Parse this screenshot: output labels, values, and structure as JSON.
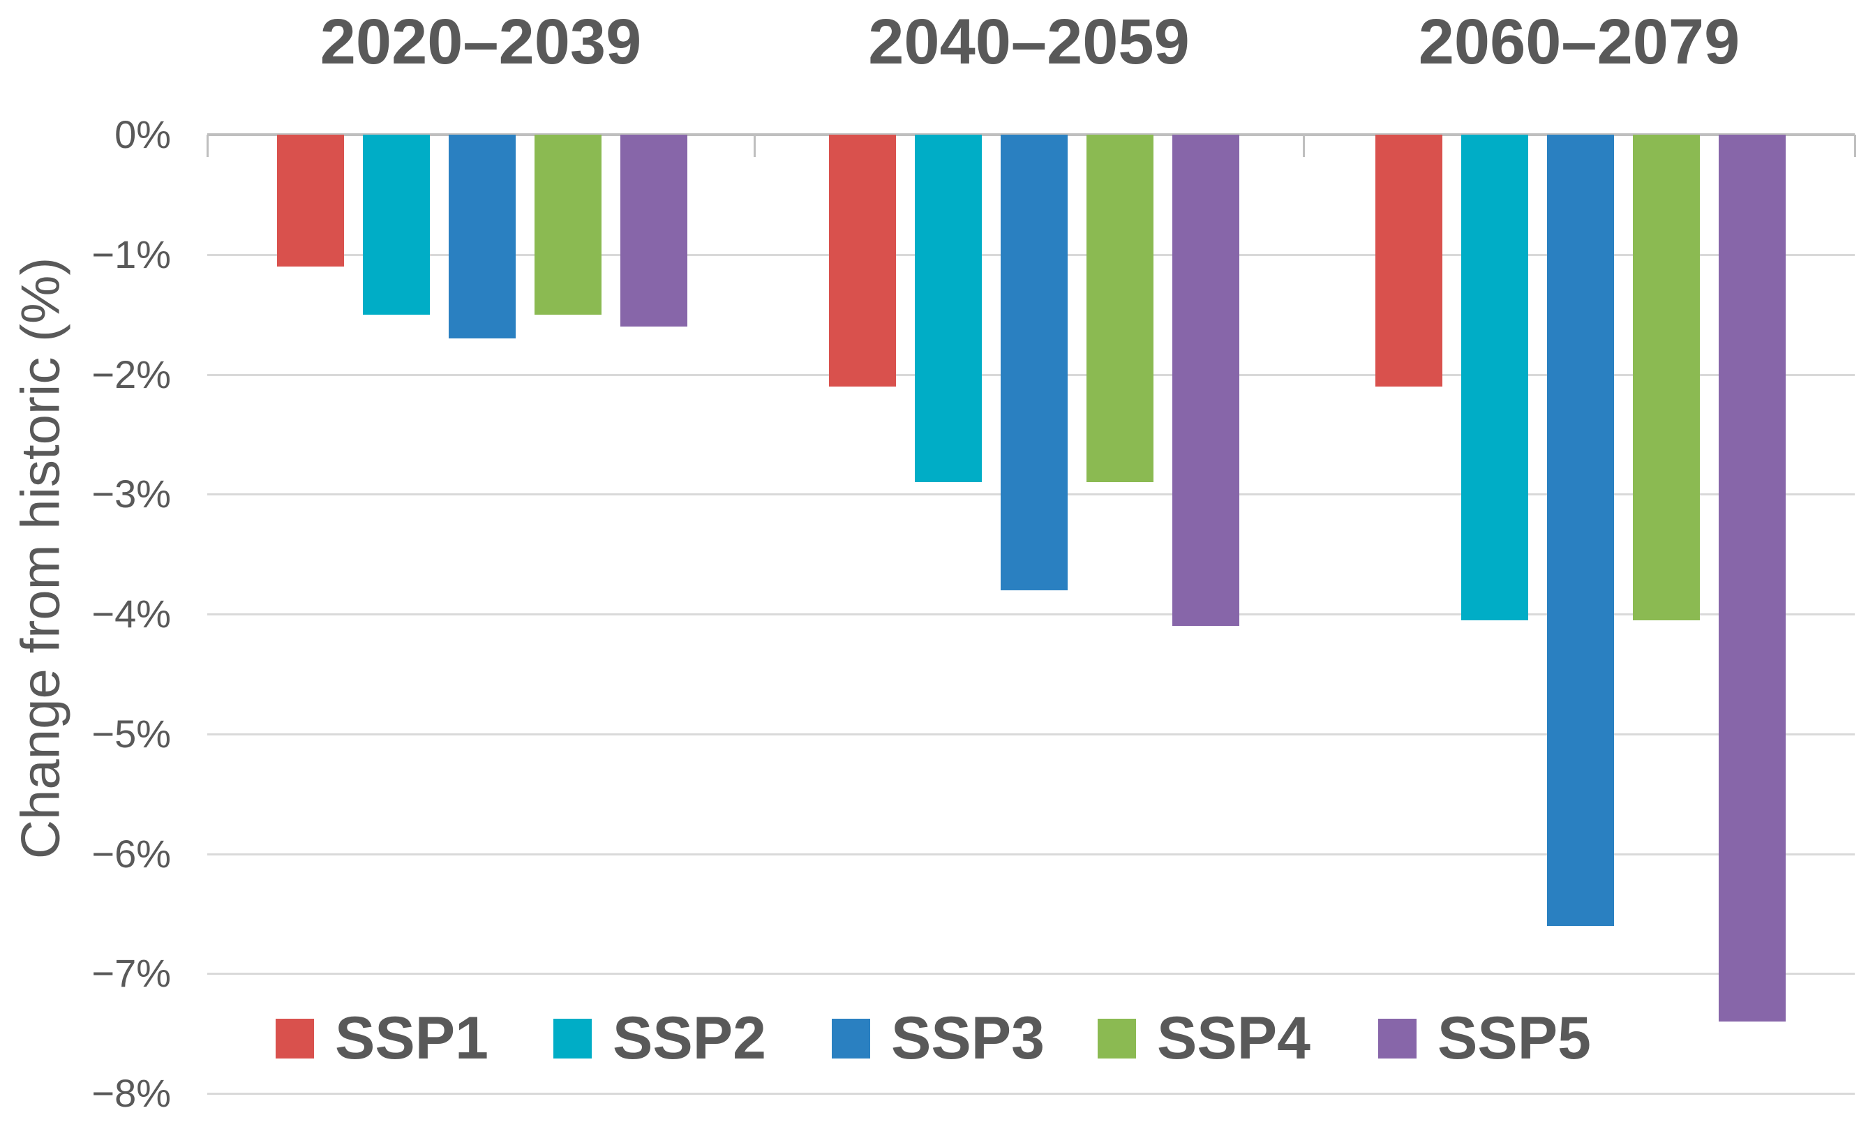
{
  "chart_data": {
    "type": "bar",
    "title": "",
    "ylabel": "Change from historic (%)",
    "ylim": [
      0,
      -8
    ],
    "grid": true,
    "legend_position": "bottom-inside",
    "group_titles": [
      "2020–2039",
      "2040–2059",
      "2060–2079"
    ],
    "ytick_labels": [
      "0%",
      "−1%",
      "−2%",
      "−3%",
      "−4%",
      "−5%",
      "−6%",
      "−7%",
      "−8%"
    ],
    "series": [
      {
        "name": "SSP1",
        "color": "#d9514d",
        "values": [
          -1.1,
          -2.1,
          -2.1
        ]
      },
      {
        "name": "SSP2",
        "color": "#00adc6",
        "values": [
          -1.5,
          -2.9,
          -4.05
        ]
      },
      {
        "name": "SSP3",
        "color": "#2a80c1",
        "values": [
          -1.7,
          -3.8,
          -6.6
        ]
      },
      {
        "name": "SSP4",
        "color": "#8bba52",
        "values": [
          -1.5,
          -2.9,
          -4.05
        ]
      },
      {
        "name": "SSP5",
        "color": "#8766a9",
        "values": [
          -1.6,
          -4.1,
          -7.4
        ]
      }
    ],
    "text_color": "#595959",
    "gridline_color": "#d9d9d9",
    "axis_color": "#bfbfbf"
  }
}
